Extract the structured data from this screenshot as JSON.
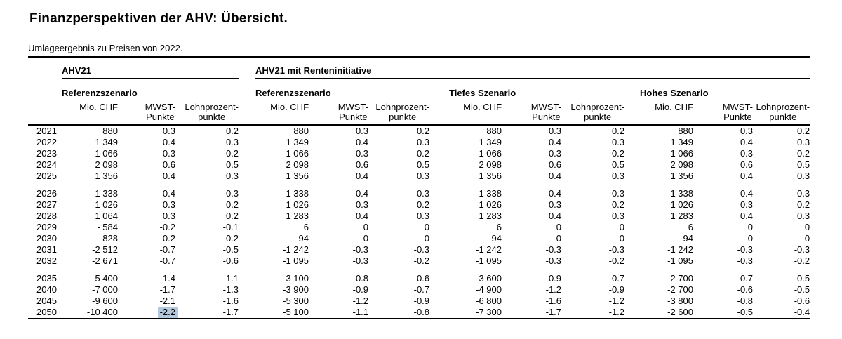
{
  "page": {
    "title": "Finanzperspektiven der AHV: Übersicht.",
    "subtitle": "Umlageergebnis zu Preisen von 2022."
  },
  "colors": {
    "text": "#000000",
    "rule": "#000000",
    "background": "#ffffff",
    "highlight": "#b5c9de"
  },
  "chart_data": {
    "type": "table",
    "title": "Finanzperspektiven der AHV: Übersicht.",
    "subtitle": "Umlageergebnis zu Preisen von 2022.",
    "group_headers": [
      "AHV21",
      "AHV21 mit Renteninitiative"
    ],
    "scenario_headers": [
      "Referenzszenario",
      "Referenzszenario",
      "Tiefes Szenario",
      "Hohes Szenario"
    ],
    "column_headers": {
      "mio": "Mio. CHF",
      "mwst_line1": "MWST-",
      "mwst_line2": "Punkte",
      "lohn_line1": "Lohnprozent-",
      "lohn_line2": "punkte"
    },
    "row_blocks": [
      [
        {
          "year": "2021",
          "values": [
            "880",
            "0.3",
            "0.2",
            "880",
            "0.3",
            "0.2",
            "880",
            "0.3",
            "0.2",
            "880",
            "0.3",
            "0.2"
          ]
        },
        {
          "year": "2022",
          "values": [
            "1 349",
            "0.4",
            "0.3",
            "1 349",
            "0.4",
            "0.3",
            "1 349",
            "0.4",
            "0.3",
            "1 349",
            "0.4",
            "0.3"
          ]
        },
        {
          "year": "2023",
          "values": [
            "1 066",
            "0.3",
            "0.2",
            "1 066",
            "0.3",
            "0.2",
            "1 066",
            "0.3",
            "0.2",
            "1 066",
            "0.3",
            "0.2"
          ]
        },
        {
          "year": "2024",
          "values": [
            "2 098",
            "0.6",
            "0.5",
            "2 098",
            "0.6",
            "0.5",
            "2 098",
            "0.6",
            "0.5",
            "2 098",
            "0.6",
            "0.5"
          ]
        },
        {
          "year": "2025",
          "values": [
            "1 356",
            "0.4",
            "0.3",
            "1 356",
            "0.4",
            "0.3",
            "1 356",
            "0.4",
            "0.3",
            "1 356",
            "0.4",
            "0.3"
          ]
        }
      ],
      [
        {
          "year": "2026",
          "values": [
            "1 338",
            "0.4",
            "0.3",
            "1 338",
            "0.4",
            "0.3",
            "1 338",
            "0.4",
            "0.3",
            "1 338",
            "0.4",
            "0.3"
          ]
        },
        {
          "year": "2027",
          "values": [
            "1 026",
            "0.3",
            "0.2",
            "1 026",
            "0.3",
            "0.2",
            "1 026",
            "0.3",
            "0.2",
            "1 026",
            "0.3",
            "0.2"
          ]
        },
        {
          "year": "2028",
          "values": [
            "1 064",
            "0.3",
            "0.2",
            "1 283",
            "0.4",
            "0.3",
            "1 283",
            "0.4",
            "0.3",
            "1 283",
            "0.4",
            "0.3"
          ]
        },
        {
          "year": "2029",
          "values": [
            "- 584",
            "-0.2",
            "-0.1",
            "6",
            "0",
            "0",
            "6",
            "0",
            "0",
            "6",
            "0",
            "0"
          ]
        },
        {
          "year": "2030",
          "values": [
            "- 828",
            "-0.2",
            "-0.2",
            "94",
            "0",
            "0",
            "94",
            "0",
            "0",
            "94",
            "0",
            "0"
          ]
        },
        {
          "year": "2031",
          "values": [
            "-2 512",
            "-0.7",
            "-0.5",
            "-1 242",
            "-0.3",
            "-0.3",
            "-1 242",
            "-0.3",
            "-0.3",
            "-1 242",
            "-0.3",
            "-0.3"
          ]
        },
        {
          "year": "2032",
          "values": [
            "-2 671",
            "-0.7",
            "-0.6",
            "-1 095",
            "-0.3",
            "-0.2",
            "-1 095",
            "-0.3",
            "-0.2",
            "-1 095",
            "-0.3",
            "-0.2"
          ]
        }
      ],
      [
        {
          "year": "2035",
          "values": [
            "-5 400",
            "-1.4",
            "-1.1",
            "-3 100",
            "-0.8",
            "-0.6",
            "-3 600",
            "-0.9",
            "-0.7",
            "-2 700",
            "-0.7",
            "-0.5"
          ]
        },
        {
          "year": "2040",
          "values": [
            "-7 000",
            "-1.7",
            "-1.3",
            "-3 900",
            "-0.9",
            "-0.7",
            "-4 900",
            "-1.2",
            "-0.9",
            "-2 700",
            "-0.6",
            "-0.5"
          ]
        },
        {
          "year": "2045",
          "values": [
            "-9 600",
            "-2.1",
            "-1.6",
            "-5 300",
            "-1.2",
            "-0.9",
            "-6 800",
            "-1.6",
            "-1.2",
            "-3 800",
            "-0.8",
            "-0.6"
          ]
        },
        {
          "year": "2050",
          "values": [
            "-10 400",
            "-2.2",
            "-1.7",
            "-5 100",
            "-1.1",
            "-0.8",
            "-7 300",
            "-1.7",
            "-1.2",
            "-2 600",
            "-0.5",
            "-0.4"
          ]
        }
      ]
    ],
    "highlight": {
      "block": 2,
      "row": 3,
      "value_index": 1,
      "color": "#b5c9de"
    }
  }
}
